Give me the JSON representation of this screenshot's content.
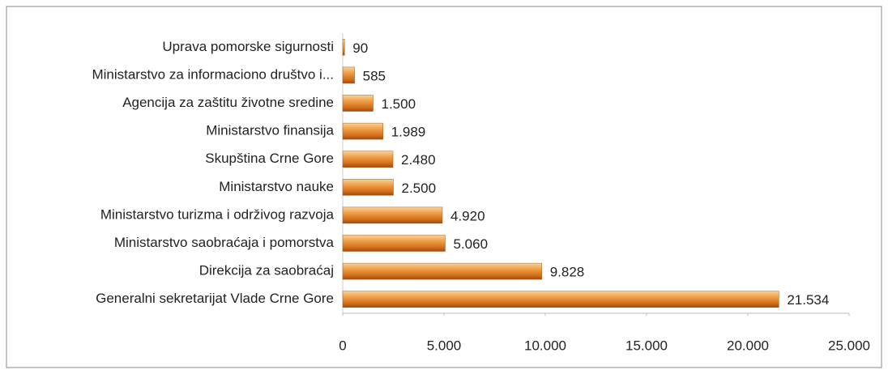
{
  "chart_data": {
    "type": "hbar",
    "categories": [
      "Uprava pomorske sigurnosti",
      "Ministarstvo za informaciono društvo i...",
      "Agencija za zaštitu životne sredine",
      "Ministarstvo finansija",
      "Skupština Crne Gore",
      "Ministarstvo nauke",
      "Ministarstvo turizma i održivog razvoja",
      "Ministarstvo saobraćaja i pomorstva",
      "Direkcija za saobraćaj",
      "Generalni sekretarijat Vlade Crne Gore"
    ],
    "values": [
      90,
      585,
      1500,
      1989,
      2480,
      2500,
      4920,
      5060,
      9828,
      21534
    ],
    "value_labels": [
      "90",
      "585",
      "1.500",
      "1.989",
      "2.480",
      "2.500",
      "4.920",
      "5.060",
      "9.828",
      "21.534"
    ],
    "color": "#e07b22",
    "xlim": [
      0,
      25000
    ],
    "xticks": [
      0,
      {
        "value": 5000,
        "label": "5.000"
      },
      {
        "value": 10000,
        "label": "10.000"
      },
      {
        "value": 15000,
        "label": "15.000"
      },
      {
        "value": 20000,
        "label": "20.000"
      },
      {
        "value": 25000,
        "label": "25.000"
      }
    ]
  }
}
